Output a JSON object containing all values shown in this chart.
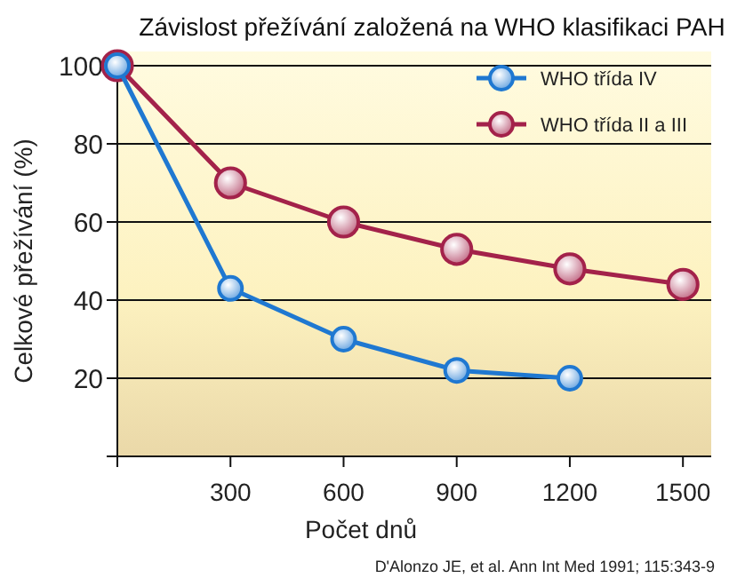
{
  "chart_data": {
    "type": "line",
    "title": "Závislost přežívání založená na WHO klasifikaci PAH",
    "xlabel": "Počet dnů",
    "ylabel": "Celkové přežívání (%)",
    "series": [
      {
        "name": "WHO třída IV",
        "color": "#1f78d1",
        "x": [
          0,
          300,
          600,
          900,
          1200
        ],
        "values": [
          100,
          43,
          30,
          22,
          20
        ]
      },
      {
        "name": "WHO třída II a III",
        "color": "#a3224a",
        "x": [
          0,
          300,
          600,
          900,
          1200,
          1500
        ],
        "values": [
          100,
          70,
          60,
          53,
          48,
          44
        ]
      }
    ],
    "xlim": [
      0,
      1575
    ],
    "xticks": [
      {
        "value": 0,
        "label": null
      },
      300,
      600,
      900,
      1200,
      1500
    ],
    "ylim": [
      0,
      100
    ],
    "yticks": [
      {
        "value": 0,
        "label": null
      },
      20,
      40,
      60,
      80,
      100
    ],
    "grid": "y",
    "legend": "top right",
    "marker": "circle",
    "line_style": "solid",
    "annotations": [
      "D'Alonzo JE, et al. Ann Int Med 1991; 115:343-9"
    ]
  }
}
